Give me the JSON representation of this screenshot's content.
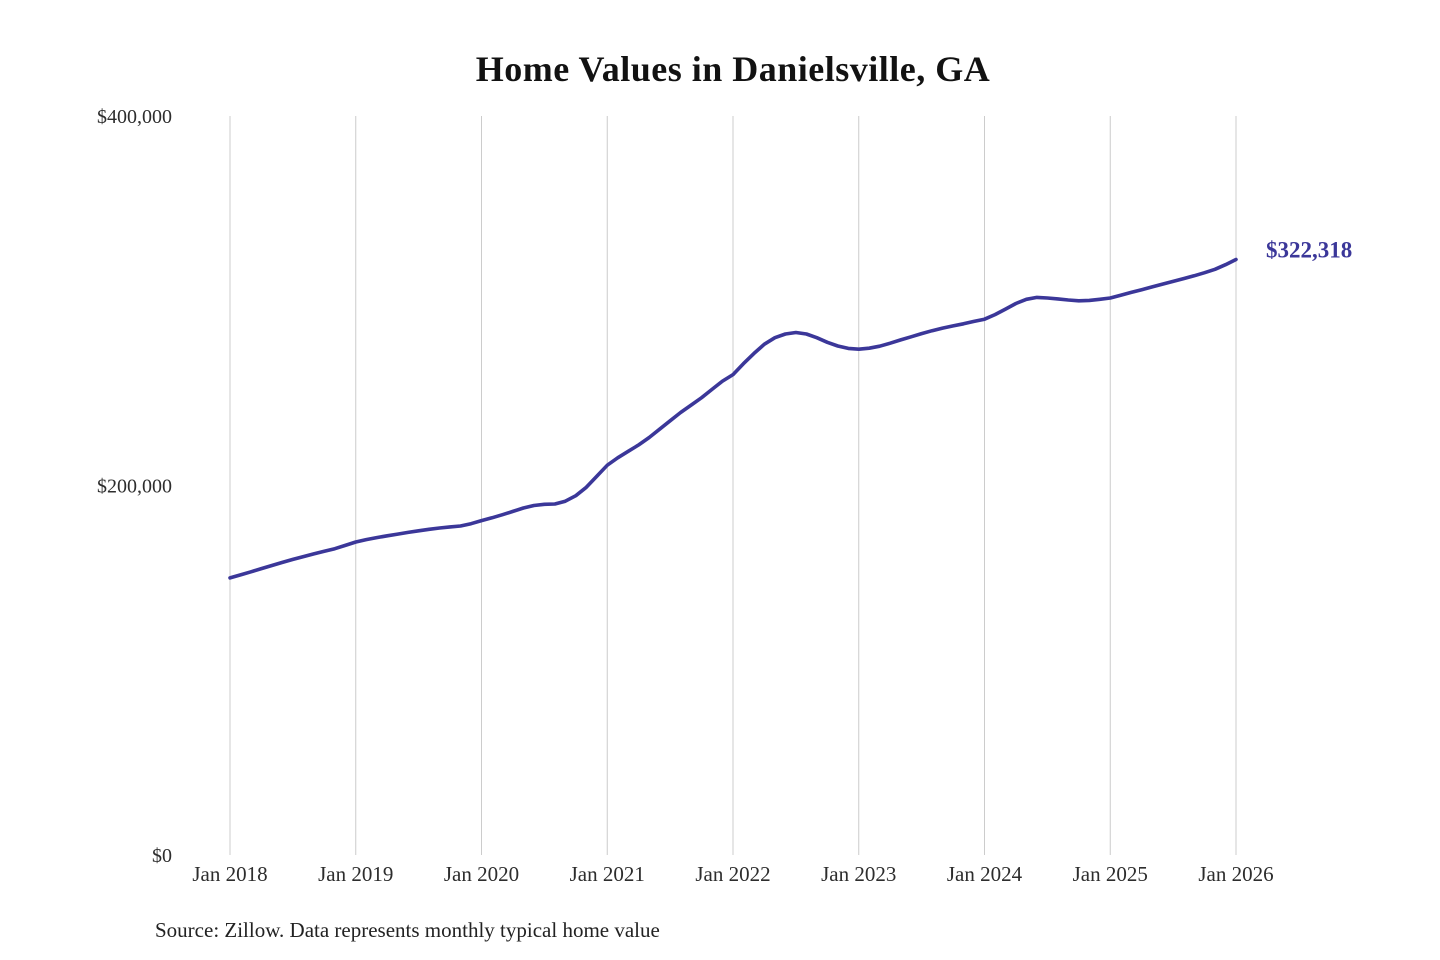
{
  "page": {
    "title": "Home Values in Danielsville, GA",
    "source_note": "Source: Zillow. Data represents monthly typical home value",
    "current_value_label": "$322,318"
  },
  "chart_data": {
    "type": "line",
    "title": "Home Values in Danielsville, GA",
    "xlabel": "",
    "ylabel": "",
    "ylim": [
      0,
      400000
    ],
    "grid": "vertical-only",
    "legend": "none",
    "line_color": "#3b3799",
    "grid_color": "#cccccc",
    "y_ticks": [
      {
        "value": 0,
        "label": "$0"
      },
      {
        "value": 200000,
        "label": "$200,000"
      },
      {
        "value": 400000,
        "label": "$400,000"
      }
    ],
    "x_tick_labels": [
      "Jan 2018",
      "Jan 2019",
      "Jan 2020",
      "Jan 2021",
      "Jan 2022",
      "Jan 2023",
      "Jan 2024",
      "Jan 2025",
      "Jan 2026"
    ],
    "annotation": {
      "text": "$322,318",
      "value": 322318,
      "position": "end-of-line"
    },
    "x": [
      "2018-01",
      "2018-02",
      "2018-03",
      "2018-04",
      "2018-05",
      "2018-06",
      "2018-07",
      "2018-08",
      "2018-09",
      "2018-10",
      "2018-11",
      "2018-12",
      "2019-01",
      "2019-02",
      "2019-03",
      "2019-04",
      "2019-05",
      "2019-06",
      "2019-07",
      "2019-08",
      "2019-09",
      "2019-10",
      "2019-11",
      "2019-12",
      "2020-01",
      "2020-02",
      "2020-03",
      "2020-04",
      "2020-05",
      "2020-06",
      "2020-07",
      "2020-08",
      "2020-09",
      "2020-10",
      "2020-11",
      "2020-12",
      "2021-01",
      "2021-02",
      "2021-03",
      "2021-04",
      "2021-05",
      "2021-06",
      "2021-07",
      "2021-08",
      "2021-09",
      "2021-10",
      "2021-11",
      "2021-12",
      "2022-01",
      "2022-02",
      "2022-03",
      "2022-04",
      "2022-05",
      "2022-06",
      "2022-07",
      "2022-08",
      "2022-09",
      "2022-10",
      "2022-11",
      "2022-12",
      "2023-01",
      "2023-02",
      "2023-03",
      "2023-04",
      "2023-05",
      "2023-06",
      "2023-07",
      "2023-08",
      "2023-09",
      "2023-10",
      "2023-11",
      "2023-12",
      "2024-01",
      "2024-02",
      "2024-03",
      "2024-04",
      "2024-05",
      "2024-06",
      "2024-07",
      "2024-08",
      "2024-09",
      "2024-10",
      "2024-11",
      "2024-12",
      "2025-01",
      "2025-02",
      "2025-03",
      "2025-04",
      "2025-05",
      "2025-06",
      "2025-07",
      "2025-08",
      "2025-09",
      "2025-10",
      "2025-11",
      "2025-12",
      "2026-01"
    ],
    "values": [
      150000,
      151600,
      153300,
      155000,
      156700,
      158400,
      160000,
      161500,
      163000,
      164400,
      165800,
      167600,
      169400,
      170700,
      171800,
      172800,
      173700,
      174600,
      175500,
      176300,
      177000,
      177600,
      178100,
      179300,
      181000,
      182500,
      184200,
      186000,
      187800,
      189200,
      189800,
      190000,
      191500,
      194500,
      199000,
      205000,
      211000,
      215000,
      218500,
      222000,
      226000,
      230500,
      235000,
      239500,
      243500,
      247500,
      252000,
      256500,
      260000,
      266000,
      271500,
      276500,
      280000,
      282000,
      282800,
      282000,
      280000,
      277500,
      275500,
      274200,
      273800,
      274300,
      275400,
      277000,
      278800,
      280500,
      282200,
      283800,
      285200,
      286400,
      287500,
      288800,
      290000,
      292500,
      295500,
      298500,
      300800,
      301800,
      301500,
      301000,
      300400,
      300000,
      300200,
      300800,
      301500,
      303000,
      304500,
      306000,
      307500,
      309000,
      310500,
      312000,
      313500,
      315200,
      317000,
      319500,
      322318
    ]
  }
}
